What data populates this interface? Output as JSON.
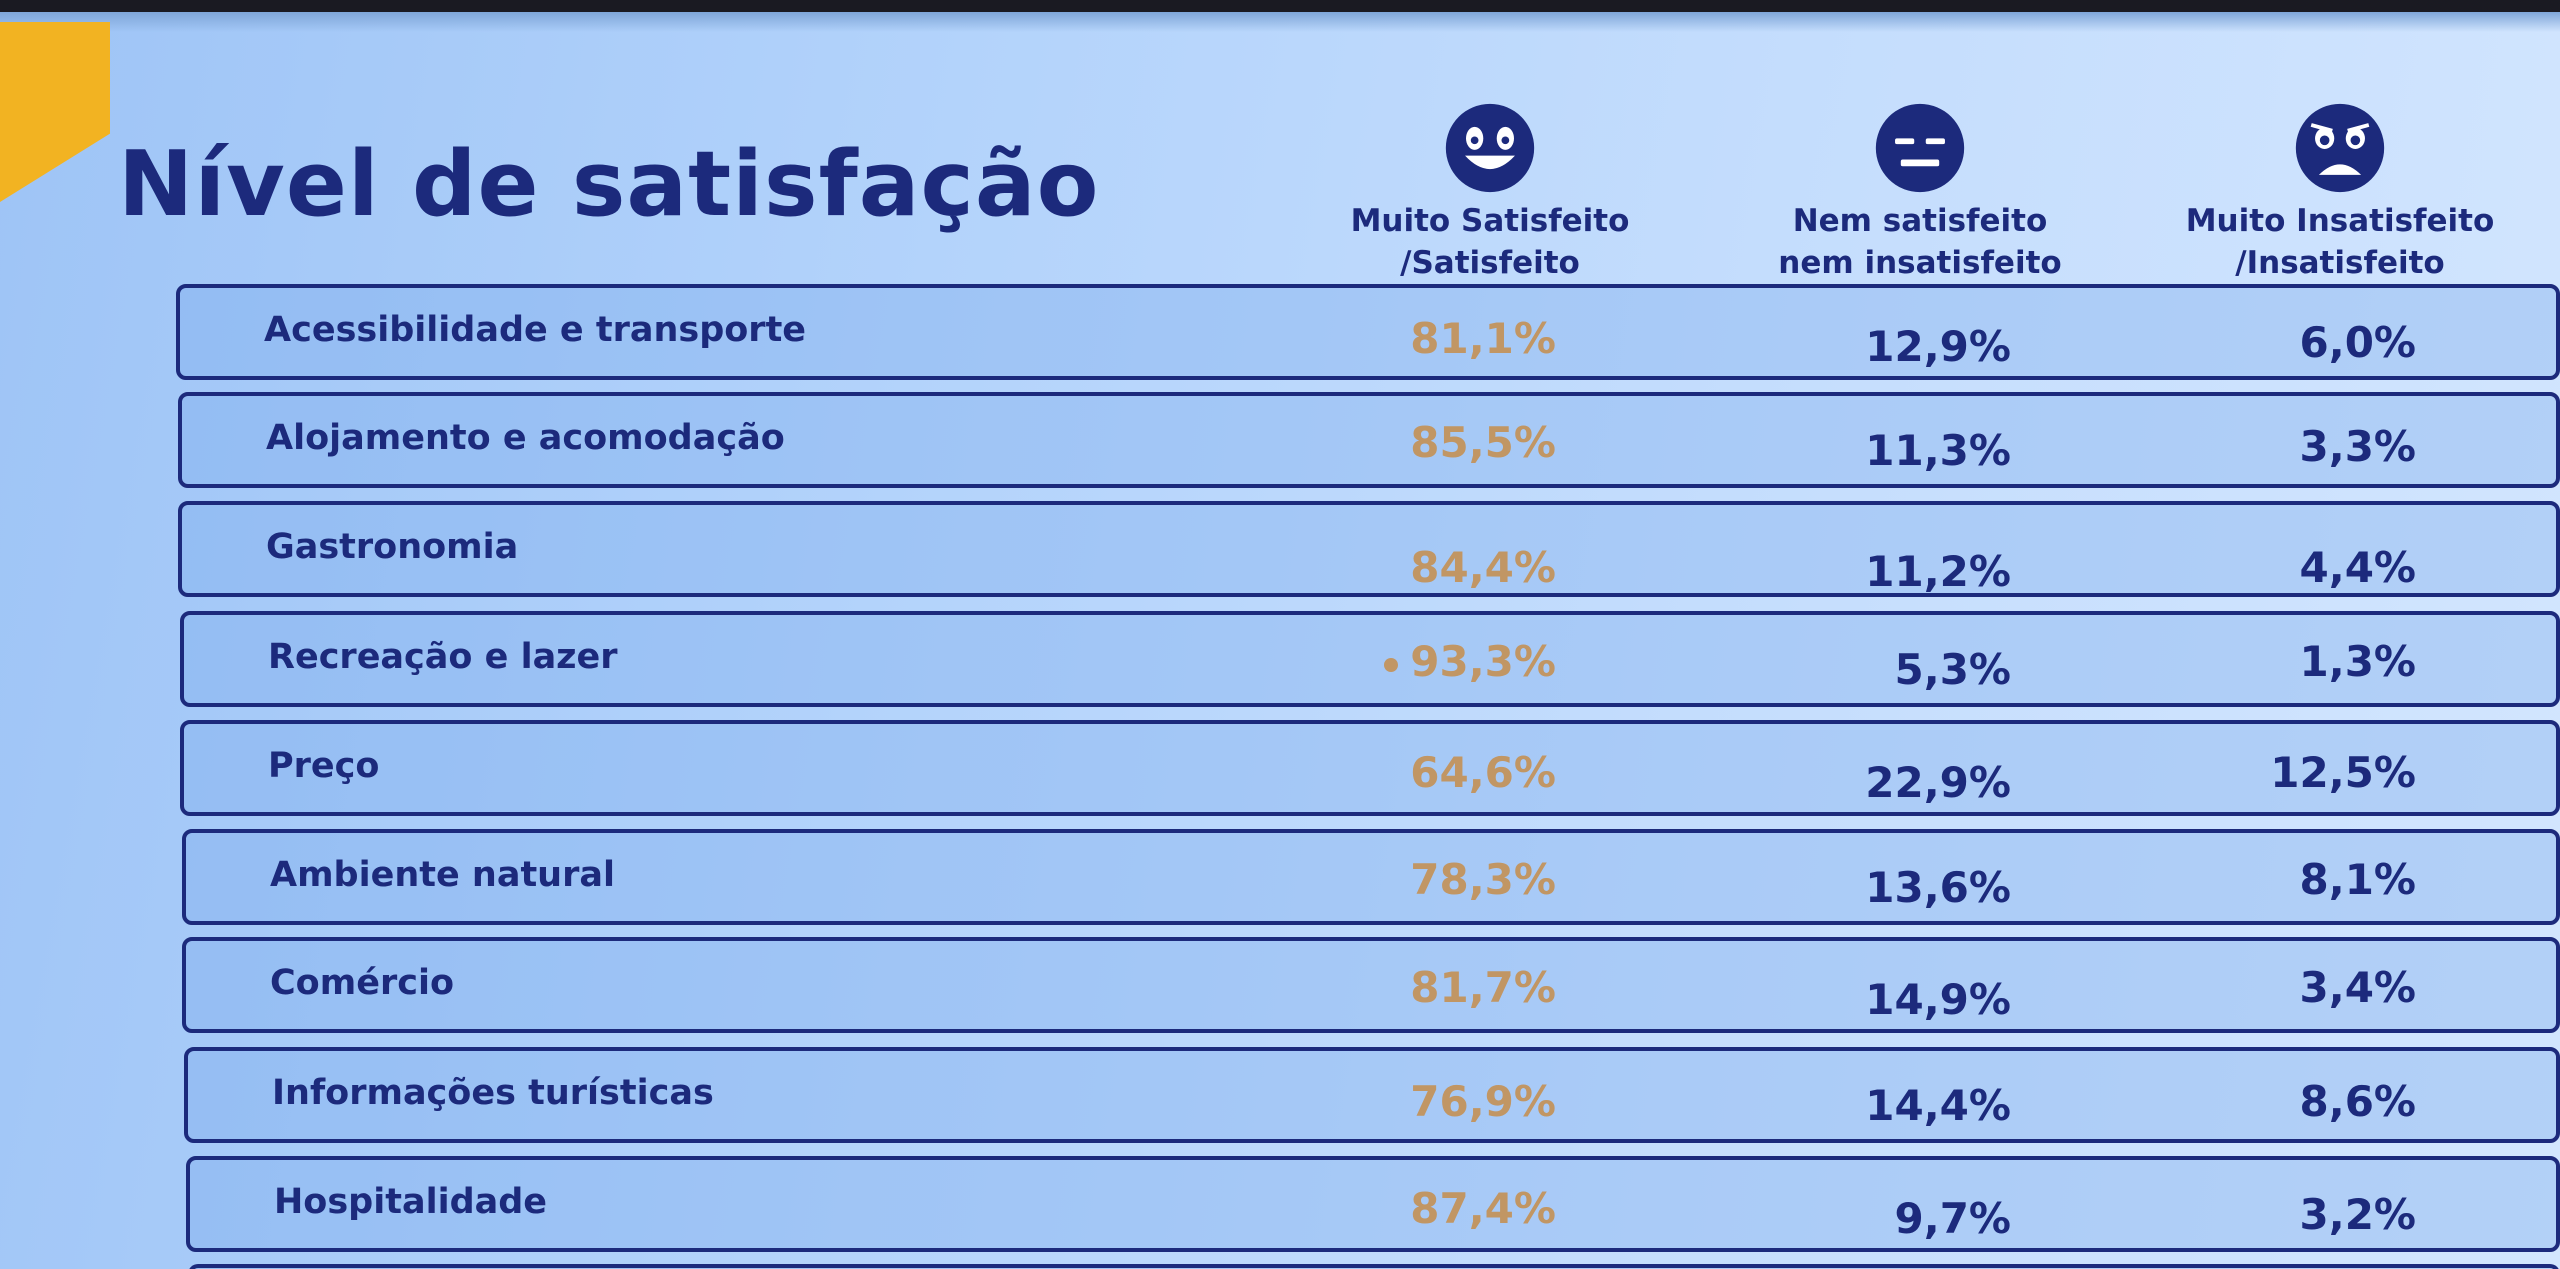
{
  "title": "Nível de satisfação",
  "columns": [
    {
      "line1": "Muito Satisfeito",
      "line2": "/Satisfeito",
      "icon": "happy-face-icon"
    },
    {
      "line1": "Nem satisfeito",
      "line2": "nem insatisfeito",
      "icon": "neutral-face-icon"
    },
    {
      "line1": "Muito Insatisfeito",
      "line2": "/Insatisfeito",
      "icon": "sad-face-icon"
    }
  ],
  "rows": [
    {
      "label": "Acessibilidade e transporte",
      "satisfeito": "81,1%",
      "neutro": "12,9%",
      "insatisfeito": "6,0%"
    },
    {
      "label": "Alojamento e acomodação",
      "satisfeito": "85,5%",
      "neutro": "11,3%",
      "insatisfeito": "3,3%"
    },
    {
      "label": "Gastronomia",
      "satisfeito": "84,4%",
      "neutro": "11,2%",
      "insatisfeito": "4,4%"
    },
    {
      "label": "Recreação e lazer",
      "satisfeito": "93,3%",
      "neutro": "5,3%",
      "insatisfeito": "1,3%"
    },
    {
      "label": "Preço",
      "satisfeito": "64,6%",
      "neutro": "22,9%",
      "insatisfeito": "12,5%"
    },
    {
      "label": "Ambiente natural",
      "satisfeito": "78,3%",
      "neutro": "13,6%",
      "insatisfeito": "8,1%"
    },
    {
      "label": "Comércio",
      "satisfeito": "81,7%",
      "neutro": "14,9%",
      "insatisfeito": "3,4%"
    },
    {
      "label": "Informações turísticas",
      "satisfeito": "76,9%",
      "neutro": "14,4%",
      "insatisfeito": "8,6%"
    },
    {
      "label": "Hospitalidade",
      "satisfeito": "87,4%",
      "neutro": "9,7%",
      "insatisfeito": "3,2%"
    }
  ],
  "colors": {
    "navy": "#1c2a7c",
    "satisfied_value": "#c19664",
    "accent": "#f2b322"
  }
}
